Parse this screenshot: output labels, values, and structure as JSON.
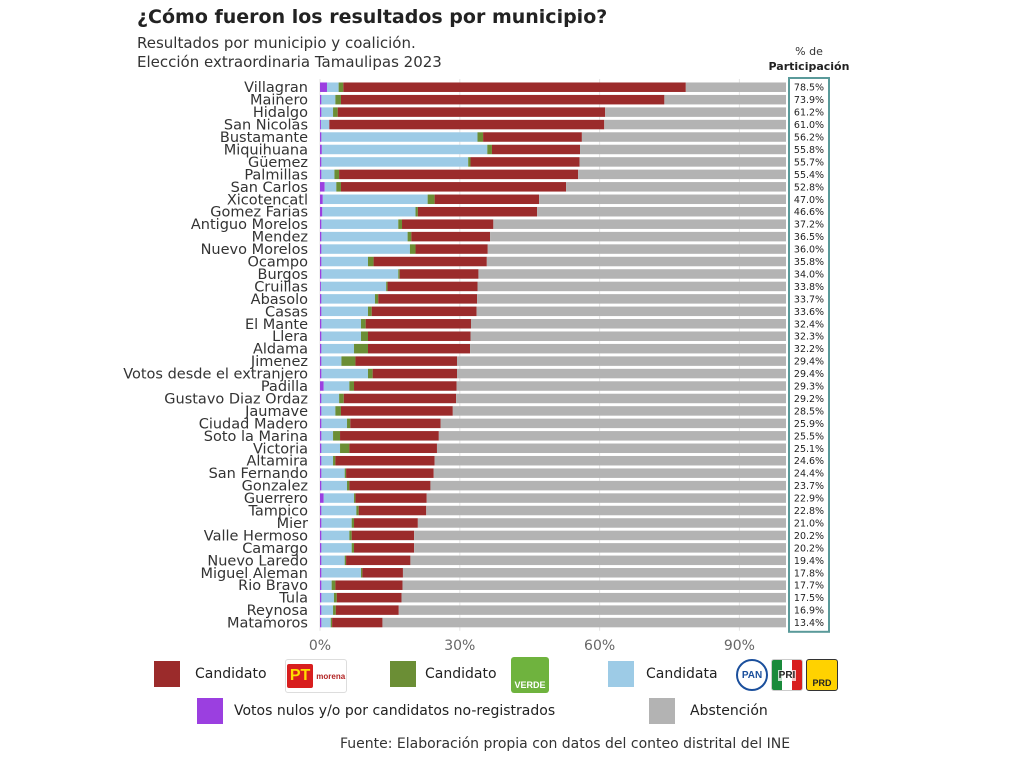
{
  "header": {
    "title": "¿Cómo fueron los resultados por municipio?",
    "subtitle_line1": "Resultados por municipio y coalición.",
    "subtitle_line2": "Elección extraordinaria Tamaulipas 2023"
  },
  "chart_data": {
    "type": "bar",
    "orientation": "horizontal",
    "stacked": true,
    "title": "¿Cómo fueron los resultados por municipio?",
    "subtitle": "Resultados por municipio y coalición. Elección extraordinaria Tamaulipas 2023",
    "participation_header_line1": "% de",
    "participation_header_line2": "Participación",
    "x_ticks": [
      "0%",
      "30%",
      "60%",
      "90%"
    ],
    "xlim": [
      0,
      100
    ],
    "grid": true,
    "colors": {
      "nulos": "#9b3fe0",
      "pan": "#9dcbe6",
      "verde": "#6b8e35",
      "pt_morena": "#9b2b2b",
      "abstencion": "#b3b3b3"
    },
    "categories": [
      "Villagran",
      "Mainero",
      "Hidalgo",
      "San Nicolas",
      "Bustamante",
      "Miquihuana",
      "Güemez",
      "Palmillas",
      "San Carlos",
      "Xicotencatl",
      "Gomez Farias",
      "Antiguo Morelos",
      "Mendez",
      "Nuevo Morelos",
      "Ocampo",
      "Burgos",
      "Cruillas",
      "Abasolo",
      "Casas",
      "El Mante",
      "Llera",
      "Aldama",
      "Jimenez",
      "Votos desde el extranjero",
      "Padilla",
      "Gustavo Diaz Ordaz",
      "Jaumave",
      "Ciudad Madero",
      "Soto la Marina",
      "Victoria",
      "Altamira",
      "San Fernando",
      "Gonzalez",
      "Guerrero",
      "Tampico",
      "Mier",
      "Valle Hermoso",
      "Camargo",
      "Nuevo Laredo",
      "Miguel Aleman",
      "Rio Bravo",
      "Tula",
      "Reynosa",
      "Matamoros"
    ],
    "participation_labels": [
      "78.5%",
      "73.9%",
      "61.2%",
      "61.0%",
      "56.2%",
      "55.8%",
      "55.7%",
      "55.4%",
      "52.8%",
      "47.0%",
      "46.6%",
      "37.2%",
      "36.5%",
      "36.0%",
      "35.8%",
      "34.0%",
      "33.8%",
      "33.7%",
      "33.6%",
      "32.4%",
      "32.3%",
      "32.2%",
      "29.4%",
      "29.4%",
      "29.3%",
      "29.2%",
      "28.5%",
      "25.9%",
      "25.5%",
      "25.1%",
      "24.6%",
      "24.4%",
      "23.7%",
      "22.9%",
      "22.8%",
      "21.0%",
      "20.2%",
      "20.2%",
      "19.4%",
      "17.8%",
      "17.7%",
      "17.5%",
      "16.9%",
      "13.4%"
    ],
    "series": [
      {
        "name": "Votos nulos y/o por candidatos no-registrados",
        "values": [
          1.5,
          0.3,
          0.3,
          0.2,
          0.3,
          0.4,
          0.3,
          0.3,
          1.0,
          0.6,
          0.5,
          0.3,
          0.3,
          0.3,
          0.3,
          0.3,
          0.2,
          0.3,
          0.3,
          0.3,
          0.3,
          0.3,
          0.3,
          0.3,
          0.8,
          0.3,
          0.3,
          0.3,
          0.3,
          0.3,
          0.3,
          0.3,
          0.3,
          0.8,
          0.3,
          0.3,
          0.3,
          0.3,
          0.3,
          0.3,
          0.3,
          0.3,
          0.3,
          0.3
        ]
      },
      {
        "name": "Candidata (PAN-PRI-PRD)",
        "values": [
          2.5,
          3.0,
          2.5,
          1.8,
          33.5,
          35.5,
          31.5,
          2.8,
          2.5,
          22.5,
          20.0,
          16.5,
          18.5,
          19.0,
          10.0,
          16.5,
          14.0,
          11.5,
          10.0,
          8.5,
          8.5,
          7.0,
          4.3,
          10.0,
          5.5,
          3.8,
          3.0,
          5.5,
          2.5,
          4.0,
          2.5,
          5.0,
          5.5,
          6.5,
          7.5,
          6.5,
          6.0,
          6.5,
          5.0,
          8.5,
          2.2,
          2.7,
          2.5,
          2.0
        ]
      },
      {
        "name": "Candidato (Verde)",
        "values": [
          1.0,
          1.2,
          1.0,
          0.0,
          1.2,
          1.0,
          0.5,
          1.0,
          1.0,
          1.5,
          0.5,
          0.8,
          0.8,
          1.2,
          1.2,
          0.3,
          0.3,
          0.7,
          0.8,
          1.0,
          1.5,
          3.0,
          3.0,
          1.0,
          1.0,
          1.0,
          1.2,
          0.7,
          1.5,
          2.0,
          0.5,
          0.3,
          0.5,
          0.3,
          0.5,
          0.5,
          0.5,
          0.5,
          0.3,
          0.3,
          0.8,
          0.6,
          0.6,
          0.3
        ]
      },
      {
        "name": "Candidato (PT-Morena)",
        "values": [
          73.5,
          69.4,
          57.4,
          59.0,
          21.2,
          18.9,
          23.4,
          51.3,
          48.3,
          22.4,
          25.6,
          19.6,
          16.9,
          15.5,
          24.3,
          16.9,
          19.3,
          21.2,
          22.5,
          22.6,
          22.0,
          21.9,
          21.8,
          18.1,
          22.0,
          24.1,
          24.0,
          19.4,
          21.2,
          18.8,
          21.3,
          18.8,
          17.4,
          15.3,
          14.5,
          13.7,
          13.4,
          12.9,
          13.8,
          8.7,
          14.4,
          13.9,
          13.5,
          10.8
        ]
      },
      {
        "name": "Abstención",
        "values": [
          21.5,
          26.1,
          38.8,
          39.0,
          43.8,
          44.2,
          44.3,
          44.6,
          47.2,
          53.0,
          53.4,
          62.8,
          63.5,
          64.0,
          64.2,
          66.0,
          66.2,
          66.3,
          66.4,
          67.6,
          67.7,
          67.8,
          70.6,
          70.6,
          70.7,
          70.8,
          71.5,
          74.1,
          74.5,
          74.9,
          75.4,
          75.6,
          76.3,
          77.1,
          77.2,
          79.0,
          79.8,
          79.8,
          80.6,
          82.2,
          82.3,
          82.5,
          83.1,
          86.6
        ]
      }
    ]
  },
  "legend": {
    "items": [
      {
        "label": "Candidato",
        "color": "#9b2b2b",
        "logo": "pt-morena"
      },
      {
        "label": "Candidato",
        "color": "#6b8e35",
        "logo": "verde"
      },
      {
        "label": "Candidata",
        "color": "#9dcbe6",
        "logo": "pan-pri-prd"
      },
      {
        "label": "Votos nulos y/o por candidatos no-registrados",
        "color": "#9b3fe0"
      },
      {
        "label": "Abstención",
        "color": "#b3b3b3"
      }
    ],
    "logos": {
      "pt_text": "PT",
      "morena_text": "morena",
      "verde_text": "VERDE",
      "pan_text": "PAN",
      "pri_text": "PRI",
      "prd_text": "PRD"
    }
  },
  "source": "Fuente: Elaboración propia con datos del conteo distrital del INE"
}
